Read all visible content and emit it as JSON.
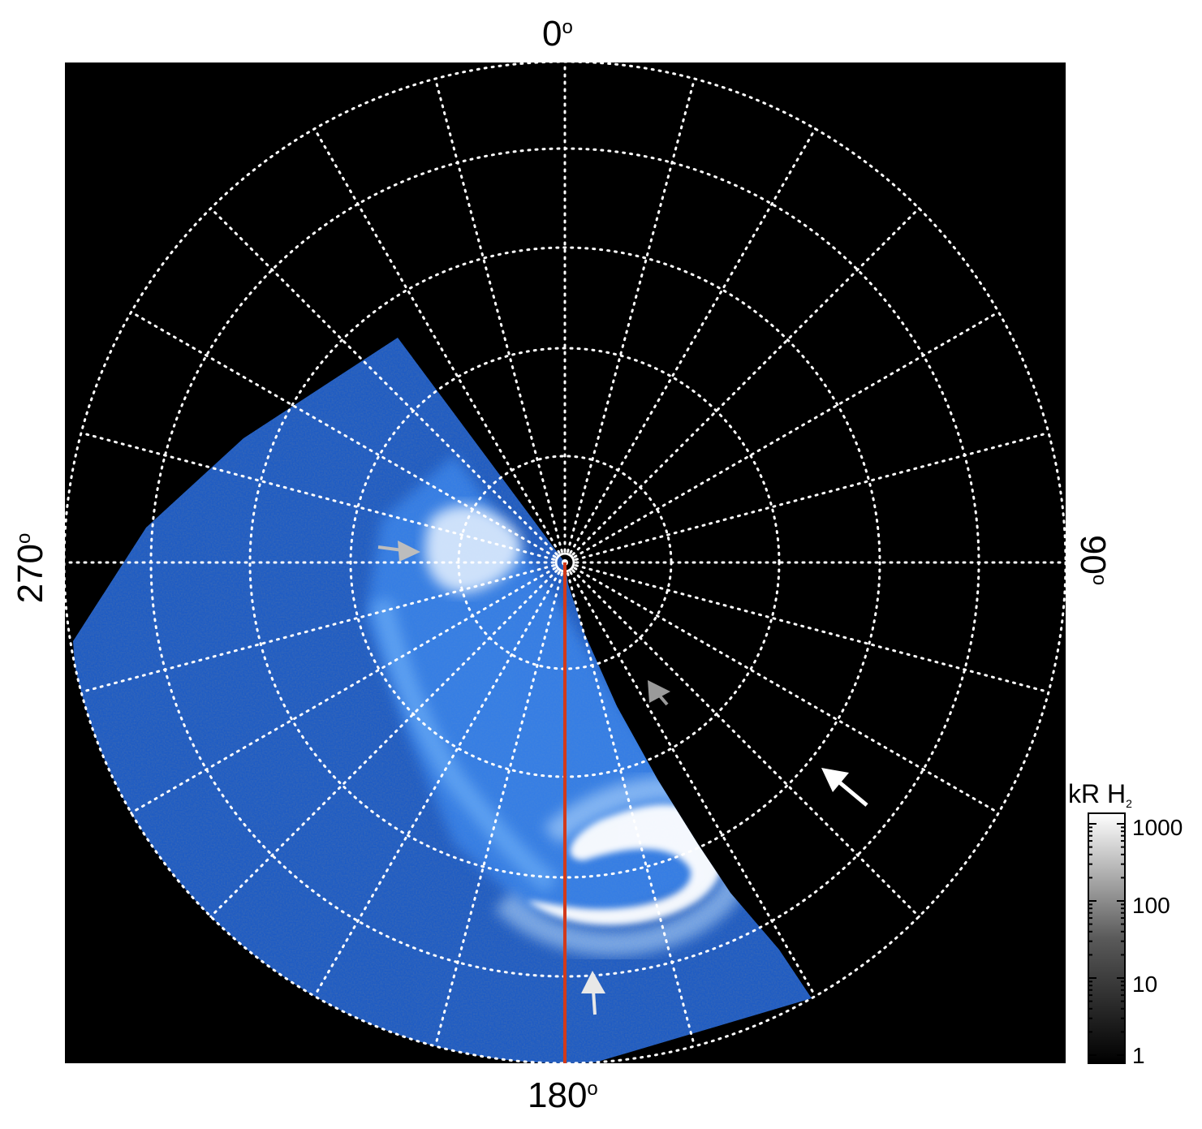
{
  "figure": {
    "angle_labels": {
      "top": "0",
      "right": "90",
      "bottom": "180",
      "left": "270"
    },
    "degree_symbol": "o",
    "colorbar": {
      "title": "kR H",
      "title_subscript": "2",
      "ticks": [
        "1000",
        "100",
        "10",
        "1"
      ]
    },
    "colors": {
      "frame_background": "#000000",
      "grid": "#ffffff",
      "emission_low": "#0a2a7a",
      "emission_mid": "#2f7fe0",
      "emission_high": "#ffffff",
      "meridian_line": "#d23a1a",
      "arrow_white": "#ffffff",
      "arrow_light_gray": "#c8c8c8",
      "arrow_gray": "#9a9a9a"
    },
    "arrows": [
      {
        "name": "arrow-gray-left",
        "color": "#bdbdbd"
      },
      {
        "name": "arrow-gray-right",
        "color": "#9a9a9a"
      },
      {
        "name": "arrow-white-right",
        "color": "#ffffff"
      },
      {
        "name": "arrow-white-bottom",
        "color": "#e8e8e8"
      }
    ]
  }
}
